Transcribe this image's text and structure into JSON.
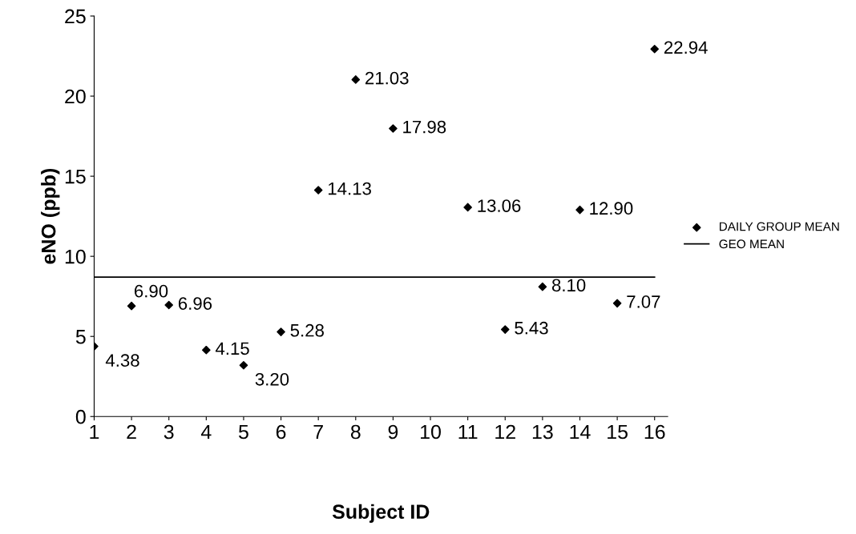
{
  "chart_data": {
    "type": "scatter",
    "xlabel": "Subject ID",
    "ylabel": "eNO (ppb)",
    "categories": [
      "1",
      "2",
      "3",
      "4",
      "5",
      "6",
      "7",
      "8",
      "9",
      "10",
      "11",
      "12",
      "13",
      "14",
      "15",
      "16"
    ],
    "series": [
      {
        "name": "DAILY GROUP MEAN",
        "color": "#000000",
        "marker": "diamond",
        "values": [
          4.38,
          6.9,
          6.96,
          4.15,
          3.2,
          5.28,
          14.13,
          21.03,
          17.98,
          null,
          13.06,
          5.43,
          8.1,
          12.9,
          7.07,
          22.94
        ],
        "value_labels": [
          "4.38",
          "6.90",
          "6.96",
          "4.15",
          "3.20",
          "5.28",
          "14.13",
          "21.03",
          "17.98",
          null,
          "13.06",
          "5.43",
          "8.10",
          "12.90",
          "7.07",
          "22.94"
        ]
      },
      {
        "name": "GEO MEAN",
        "type": "line",
        "color": "#000000",
        "marker": "none",
        "line_style": "solid",
        "values": [
          8.7,
          8.7,
          8.7,
          8.7,
          8.7,
          8.7,
          8.7,
          8.7,
          8.7,
          8.7,
          8.7,
          8.7,
          8.7,
          8.7,
          8.7,
          8.7
        ]
      }
    ],
    "ylim": [
      0,
      25
    ],
    "yticks": [
      0,
      5,
      10,
      15,
      20,
      25
    ],
    "grid": false,
    "legend": "right"
  }
}
